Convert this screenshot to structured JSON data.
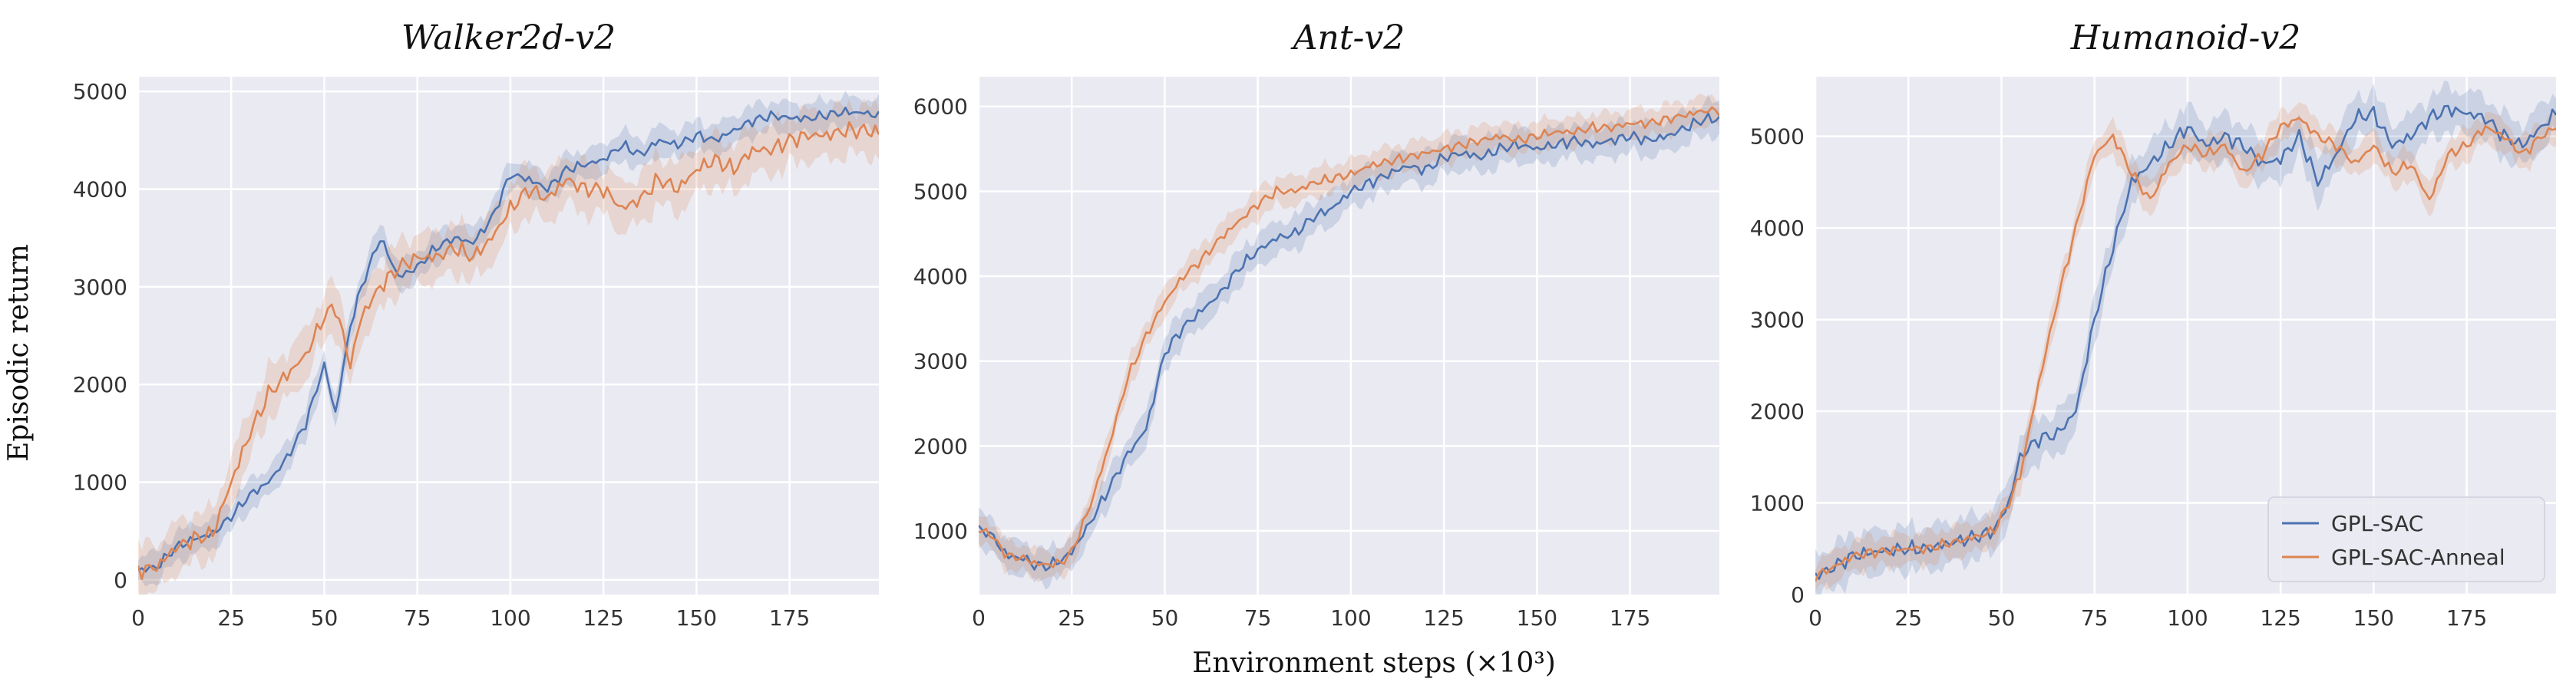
{
  "figure": {
    "ylabel": "Episodic return",
    "xlabel": "Environment steps (×10³)"
  },
  "legend": {
    "placement": "lower-right",
    "entries": [
      {
        "name": "GPL-SAC",
        "color": "#4c72b0"
      },
      {
        "name": "GPL-SAC-Anneal",
        "color": "#dd8452"
      }
    ]
  },
  "colors": {
    "panel_bg": "#eaeaf2",
    "grid": "#ffffff",
    "series1": "#4c72b0",
    "series2": "#dd8452"
  },
  "chart_data": [
    {
      "type": "line",
      "title": "Walker2d-v2",
      "xlim": [
        0,
        199
      ],
      "ylim": [
        -150,
        5150
      ],
      "xticks": [
        0,
        25,
        50,
        75,
        100,
        125,
        150,
        175
      ],
      "yticks": [
        0,
        1000,
        2000,
        3000,
        4000,
        5000
      ],
      "grid": true,
      "series": [
        {
          "name": "GPL-SAC",
          "band": 180,
          "points": [
            [
              0,
              100
            ],
            [
              5,
              130
            ],
            [
              10,
              330
            ],
            [
              15,
              420
            ],
            [
              20,
              470
            ],
            [
              25,
              650
            ],
            [
              30,
              870
            ],
            [
              35,
              1000
            ],
            [
              40,
              1250
            ],
            [
              45,
              1600
            ],
            [
              50,
              2200
            ],
            [
              53,
              1700
            ],
            [
              57,
              2600
            ],
            [
              60,
              3000
            ],
            [
              65,
              3500
            ],
            [
              70,
              3100
            ],
            [
              75,
              3200
            ],
            [
              80,
              3400
            ],
            [
              85,
              3500
            ],
            [
              90,
              3450
            ],
            [
              95,
              3700
            ],
            [
              100,
              4150
            ],
            [
              105,
              4100
            ],
            [
              110,
              4000
            ],
            [
              115,
              4200
            ],
            [
              120,
              4250
            ],
            [
              125,
              4300
            ],
            [
              130,
              4450
            ],
            [
              135,
              4350
            ],
            [
              140,
              4500
            ],
            [
              145,
              4450
            ],
            [
              150,
              4550
            ],
            [
              155,
              4500
            ],
            [
              160,
              4600
            ],
            [
              165,
              4700
            ],
            [
              170,
              4750
            ],
            [
              175,
              4730
            ],
            [
              180,
              4720
            ],
            [
              185,
              4760
            ],
            [
              190,
              4790
            ],
            [
              195,
              4780
            ],
            [
              199,
              4750
            ]
          ]
        },
        {
          "name": "GPL-SAC-Anneal",
          "band": 300,
          "points": [
            [
              0,
              100
            ],
            [
              5,
              130
            ],
            [
              10,
              330
            ],
            [
              15,
              420
            ],
            [
              20,
              470
            ],
            [
              25,
              1000
            ],
            [
              30,
              1500
            ],
            [
              35,
              1900
            ],
            [
              40,
              2100
            ],
            [
              45,
              2300
            ],
            [
              50,
              2700
            ],
            [
              53,
              2800
            ],
            [
              57,
              2200
            ],
            [
              60,
              2700
            ],
            [
              65,
              3000
            ],
            [
              70,
              3200
            ],
            [
              75,
              3300
            ],
            [
              80,
              3300
            ],
            [
              85,
              3400
            ],
            [
              90,
              3300
            ],
            [
              95,
              3500
            ],
            [
              100,
              3800
            ],
            [
              105,
              4000
            ],
            [
              110,
              3900
            ],
            [
              115,
              4100
            ],
            [
              120,
              4000
            ],
            [
              125,
              4000
            ],
            [
              130,
              3800
            ],
            [
              135,
              3900
            ],
            [
              140,
              4100
            ],
            [
              145,
              4000
            ],
            [
              150,
              4200
            ],
            [
              155,
              4300
            ],
            [
              160,
              4200
            ],
            [
              165,
              4400
            ],
            [
              170,
              4400
            ],
            [
              175,
              4500
            ],
            [
              180,
              4550
            ],
            [
              185,
              4550
            ],
            [
              190,
              4600
            ],
            [
              195,
              4600
            ],
            [
              199,
              4580
            ]
          ]
        }
      ]
    },
    {
      "type": "line",
      "title": "Ant-v2",
      "xlim": [
        0,
        199
      ],
      "ylim": [
        250,
        6350
      ],
      "xticks": [
        0,
        25,
        50,
        75,
        100,
        125,
        150,
        175
      ],
      "yticks": [
        1000,
        2000,
        3000,
        4000,
        5000,
        6000
      ],
      "grid": true,
      "series": [
        {
          "name": "GPL-SAC",
          "band": 230,
          "points": [
            [
              0,
              1000
            ],
            [
              3,
              980
            ],
            [
              5,
              850
            ],
            [
              8,
              700
            ],
            [
              12,
              680
            ],
            [
              15,
              600
            ],
            [
              18,
              580
            ],
            [
              22,
              650
            ],
            [
              25,
              750
            ],
            [
              30,
              1100
            ],
            [
              35,
              1500
            ],
            [
              40,
              1900
            ],
            [
              45,
              2200
            ],
            [
              50,
              3100
            ],
            [
              55,
              3400
            ],
            [
              60,
              3600
            ],
            [
              65,
              3800
            ],
            [
              70,
              4100
            ],
            [
              75,
              4300
            ],
            [
              80,
              4450
            ],
            [
              85,
              4500
            ],
            [
              90,
              4700
            ],
            [
              95,
              4800
            ],
            [
              100,
              5000
            ],
            [
              105,
              5100
            ],
            [
              110,
              5200
            ],
            [
              115,
              5300
            ],
            [
              120,
              5250
            ],
            [
              125,
              5400
            ],
            [
              130,
              5450
            ],
            [
              135,
              5400
            ],
            [
              140,
              5500
            ],
            [
              145,
              5550
            ],
            [
              150,
              5500
            ],
            [
              155,
              5550
            ],
            [
              160,
              5600
            ],
            [
              165,
              5550
            ],
            [
              170,
              5600
            ],
            [
              175,
              5650
            ],
            [
              180,
              5600
            ],
            [
              185,
              5650
            ],
            [
              190,
              5750
            ],
            [
              195,
              5850
            ],
            [
              199,
              5850
            ]
          ]
        },
        {
          "name": "GPL-SAC-Anneal",
          "band": 200,
          "points": [
            [
              0,
              1000
            ],
            [
              3,
              980
            ],
            [
              5,
              850
            ],
            [
              8,
              700
            ],
            [
              12,
              680
            ],
            [
              15,
              620
            ],
            [
              18,
              600
            ],
            [
              22,
              620
            ],
            [
              25,
              750
            ],
            [
              30,
              1300
            ],
            [
              35,
              2000
            ],
            [
              40,
              2800
            ],
            [
              45,
              3300
            ],
            [
              50,
              3700
            ],
            [
              55,
              4000
            ],
            [
              60,
              4200
            ],
            [
              65,
              4450
            ],
            [
              70,
              4650
            ],
            [
              75,
              4850
            ],
            [
              80,
              5000
            ],
            [
              85,
              5000
            ],
            [
              90,
              5100
            ],
            [
              95,
              5150
            ],
            [
              100,
              5200
            ],
            [
              105,
              5300
            ],
            [
              110,
              5350
            ],
            [
              115,
              5400
            ],
            [
              120,
              5450
            ],
            [
              125,
              5500
            ],
            [
              130,
              5550
            ],
            [
              135,
              5600
            ],
            [
              140,
              5650
            ],
            [
              145,
              5600
            ],
            [
              150,
              5650
            ],
            [
              155,
              5700
            ],
            [
              160,
              5700
            ],
            [
              165,
              5750
            ],
            [
              170,
              5750
            ],
            [
              175,
              5800
            ],
            [
              180,
              5800
            ],
            [
              185,
              5850
            ],
            [
              190,
              5900
            ],
            [
              195,
              5950
            ],
            [
              199,
              5950
            ]
          ]
        }
      ]
    },
    {
      "type": "line",
      "title": "Humanoid-v2",
      "xlim": [
        0,
        199
      ],
      "ylim": [
        0,
        5650
      ],
      "xticks": [
        0,
        25,
        50,
        75,
        100,
        125,
        150,
        175
      ],
      "yticks": [
        0,
        1000,
        2000,
        3000,
        4000,
        5000
      ],
      "grid": true,
      "series": [
        {
          "name": "GPL-SAC",
          "band": 280,
          "points": [
            [
              0,
              200
            ],
            [
              5,
              300
            ],
            [
              10,
              420
            ],
            [
              15,
              460
            ],
            [
              20,
              480
            ],
            [
              25,
              500
            ],
            [
              30,
              500
            ],
            [
              35,
              550
            ],
            [
              40,
              600
            ],
            [
              45,
              650
            ],
            [
              48,
              700
            ],
            [
              52,
              1000
            ],
            [
              55,
              1500
            ],
            [
              60,
              1700
            ],
            [
              65,
              1750
            ],
            [
              70,
              2000
            ],
            [
              75,
              3000
            ],
            [
              80,
              3800
            ],
            [
              85,
              4500
            ],
            [
              90,
              4700
            ],
            [
              95,
              4900
            ],
            [
              100,
              5100
            ],
            [
              105,
              4900
            ],
            [
              110,
              5000
            ],
            [
              115,
              4900
            ],
            [
              120,
              4700
            ],
            [
              125,
              4750
            ],
            [
              130,
              5000
            ],
            [
              135,
              4500
            ],
            [
              140,
              4800
            ],
            [
              145,
              5200
            ],
            [
              150,
              5250
            ],
            [
              155,
              4900
            ],
            [
              160,
              5000
            ],
            [
              165,
              5200
            ],
            [
              170,
              5300
            ],
            [
              175,
              5250
            ],
            [
              180,
              5200
            ],
            [
              185,
              5000
            ],
            [
              190,
              4900
            ],
            [
              195,
              5100
            ],
            [
              199,
              5250
            ]
          ]
        },
        {
          "name": "GPL-SAC-Anneal",
          "band": 200,
          "points": [
            [
              0,
              200
            ],
            [
              5,
              300
            ],
            [
              10,
              420
            ],
            [
              15,
              460
            ],
            [
              20,
              480
            ],
            [
              25,
              500
            ],
            [
              30,
              500
            ],
            [
              35,
              550
            ],
            [
              40,
              600
            ],
            [
              45,
              650
            ],
            [
              48,
              700
            ],
            [
              52,
              1000
            ],
            [
              55,
              1300
            ],
            [
              60,
              2300
            ],
            [
              65,
              3200
            ],
            [
              70,
              4000
            ],
            [
              75,
              4800
            ],
            [
              80,
              5000
            ],
            [
              85,
              4600
            ],
            [
              90,
              4300
            ],
            [
              95,
              4700
            ],
            [
              100,
              4900
            ],
            [
              105,
              4800
            ],
            [
              110,
              4900
            ],
            [
              115,
              4600
            ],
            [
              120,
              4800
            ],
            [
              125,
              5100
            ],
            [
              130,
              5200
            ],
            [
              135,
              5000
            ],
            [
              140,
              4900
            ],
            [
              145,
              4700
            ],
            [
              150,
              4900
            ],
            [
              155,
              4600
            ],
            [
              160,
              4700
            ],
            [
              165,
              4300
            ],
            [
              170,
              4800
            ],
            [
              175,
              4900
            ],
            [
              180,
              5100
            ],
            [
              185,
              5000
            ],
            [
              190,
              4800
            ],
            [
              195,
              5000
            ],
            [
              199,
              5100
            ]
          ]
        }
      ]
    }
  ]
}
